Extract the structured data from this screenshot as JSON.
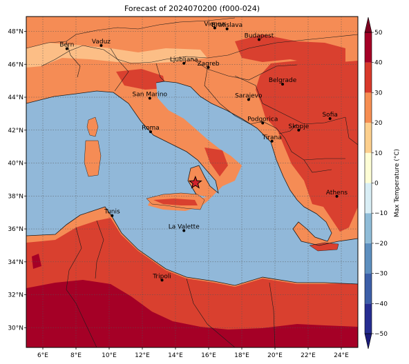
{
  "title": "Forecast of 2024070200 (f000-024)",
  "map": {
    "lon_range": [
      5.0,
      25.0
    ],
    "lat_range": [
      28.8,
      48.9
    ],
    "lon_ticks": [
      6,
      8,
      10,
      12,
      14,
      16,
      18,
      20,
      22,
      24
    ],
    "lon_tick_labels": [
      "6°E",
      "8°E",
      "10°E",
      "12°E",
      "14°E",
      "16°E",
      "18°E",
      "20°E",
      "22°E",
      "24°E"
    ],
    "lat_ticks": [
      30,
      32,
      34,
      36,
      38,
      40,
      42,
      44,
      46,
      48
    ],
    "lat_tick_labels": [
      "30°N",
      "32°N",
      "34°N",
      "36°N",
      "38°N",
      "40°N",
      "42°N",
      "44°N",
      "46°N",
      "48°N"
    ],
    "grid": true,
    "star_marker": {
      "lon": 15.2,
      "lat": 38.8,
      "color": "#d0202a"
    },
    "cities": [
      {
        "name": "Bern",
        "lon": 7.45,
        "lat": 46.95
      },
      {
        "name": "Vaduz",
        "lon": 9.52,
        "lat": 47.14
      },
      {
        "name": "Vienna",
        "lon": 16.37,
        "lat": 48.21
      },
      {
        "name": "Bratislava",
        "lon": 17.11,
        "lat": 48.15
      },
      {
        "name": "Budapest",
        "lon": 19.04,
        "lat": 47.5
      },
      {
        "name": "Ljubljana",
        "lon": 14.51,
        "lat": 46.06
      },
      {
        "name": "Zagreb",
        "lon": 15.98,
        "lat": 45.81
      },
      {
        "name": "Belgrade",
        "lon": 20.46,
        "lat": 44.79
      },
      {
        "name": "San Marino",
        "lon": 12.45,
        "lat": 43.94
      },
      {
        "name": "Sarajevo",
        "lon": 18.41,
        "lat": 43.86
      },
      {
        "name": "Podgorica",
        "lon": 19.26,
        "lat": 42.43
      },
      {
        "name": "Sofia",
        "lon": 23.32,
        "lat": 42.7
      },
      {
        "name": "Roma",
        "lon": 12.5,
        "lat": 41.9
      },
      {
        "name": "Skopje",
        "lon": 21.43,
        "lat": 42.0
      },
      {
        "name": "Tirana",
        "lon": 19.82,
        "lat": 41.33
      },
      {
        "name": "Athens",
        "lon": 23.73,
        "lat": 37.98
      },
      {
        "name": "Tunis",
        "lon": 10.18,
        "lat": 36.81
      },
      {
        "name": "La Valette",
        "lon": 14.51,
        "lat": 35.9
      },
      {
        "name": "Tripoli",
        "lon": 13.19,
        "lat": 32.89
      }
    ]
  },
  "colorbar": {
    "label": "Max Temperature (°C)",
    "ticks": [
      -50,
      -40,
      -30,
      -20,
      -10,
      0,
      10,
      20,
      30,
      40,
      50
    ],
    "tick_labels": [
      "−50",
      "−40",
      "−30",
      "−20",
      "−10",
      "0",
      "10",
      "20",
      "30",
      "40",
      "50"
    ],
    "bands": [
      {
        "from": -55,
        "to": -50,
        "color": "#1b1b7a"
      },
      {
        "from": -50,
        "to": -40,
        "color": "#262d91"
      },
      {
        "from": -40,
        "to": -30,
        "color": "#3c5fa8"
      },
      {
        "from": -30,
        "to": -20,
        "color": "#5d8fbf"
      },
      {
        "from": -20,
        "to": -10,
        "color": "#8fbcd8"
      },
      {
        "from": -10,
        "to": 0,
        "color": "#d9eef5"
      },
      {
        "from": 0,
        "to": 10,
        "color": "#fefed6"
      },
      {
        "from": 10,
        "to": 20,
        "color": "#fdd08e"
      },
      {
        "from": 20,
        "to": 30,
        "color": "#f68e52"
      },
      {
        "from": 30,
        "to": 40,
        "color": "#d8392b"
      },
      {
        "from": 40,
        "to": 50,
        "color": "#a50026"
      },
      {
        "from": 50,
        "to": 55,
        "color": "#7d0020"
      }
    ]
  },
  "colors": {
    "sea": "#91b8d9",
    "land_20_30": "#f58c55",
    "land_30_40": "#d9402f",
    "land_40_50": "#a50026",
    "land_10_20": "#fcbe86"
  }
}
